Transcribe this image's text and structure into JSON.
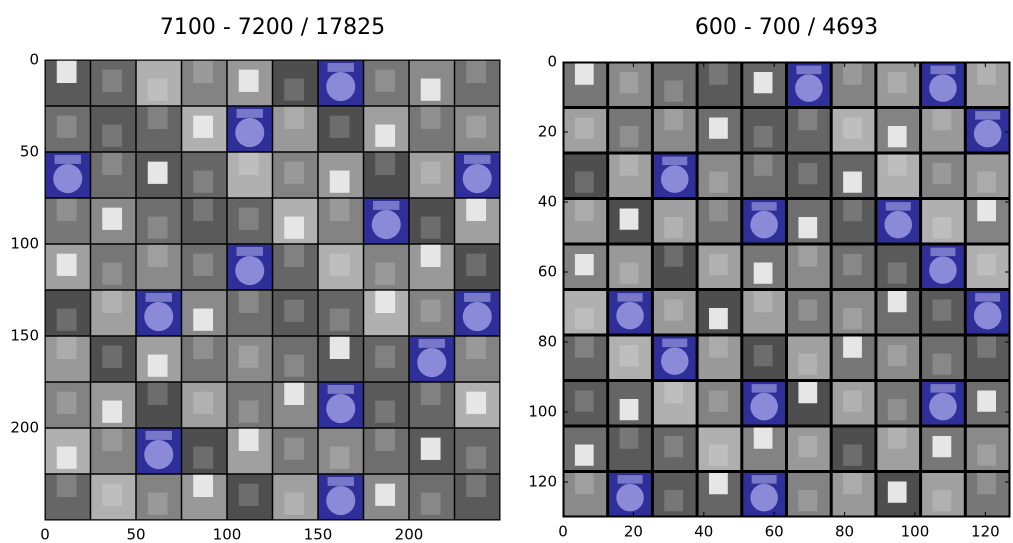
{
  "chart_data": [
    {
      "type": "image",
      "title": "7100 - 7200 / 17825",
      "xlim": [
        0,
        250
      ],
      "ylim": [
        0,
        250
      ],
      "xticks": [
        0,
        50,
        100,
        150,
        200
      ],
      "yticks": [
        0,
        50,
        100,
        150,
        200
      ]
    },
    {
      "type": "image",
      "title": "600 - 700 / 4693",
      "xlim": [
        0,
        127
      ],
      "ylim": [
        0,
        130
      ],
      "xticks": [
        0,
        20,
        40,
        60,
        80,
        100,
        120
      ],
      "yticks": [
        0,
        20,
        40,
        60,
        80,
        100,
        120
      ]
    }
  ]
}
